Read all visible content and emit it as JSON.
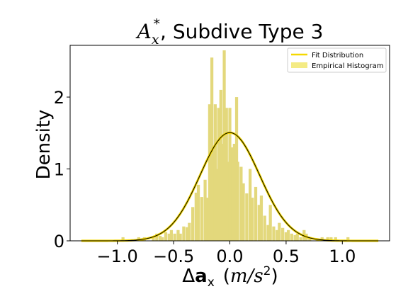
{
  "chart_data": {
    "type": "bar",
    "title_main": "A",
    "title_sub": "x",
    "title_sup": "*",
    "title_rest": ", Subdive Type 3",
    "ylabel": "Density",
    "xlabel_delta": "Δ",
    "xlabel_a": "a",
    "xlabel_sub": "x",
    "xlabel_units_open": "(",
    "xlabel_units": "m/s",
    "xlabel_units_sup": "2",
    "xlabel_units_close": ")",
    "xlim": [
      -1.42,
      1.42
    ],
    "ylim": [
      0,
      2.72
    ],
    "xticks": [
      -1.0,
      -0.5,
      0.0,
      0.5,
      1.0
    ],
    "xtick_labels": [
      "−1.0",
      "−0.5",
      "0.0",
      "0.5",
      "1.0"
    ],
    "yticks": [
      0,
      1,
      2
    ],
    "ytick_labels": [
      "0",
      "1",
      "2"
    ],
    "legend_position": "top-right",
    "legend": [
      {
        "name": "Fit Distribution",
        "kind": "line",
        "color": "#f5d800"
      },
      {
        "name": "Empirical Histogram",
        "kind": "patch",
        "color": "#f4eb84"
      }
    ],
    "hist": {
      "bin_width": 0.0267,
      "color": "#e3d87c",
      "bins": [
        [
          -0.95,
          0.05
        ],
        [
          -0.81,
          0.05
        ],
        [
          -0.76,
          0.05
        ],
        [
          -0.68,
          0.05
        ],
        [
          -0.65,
          0.1
        ],
        [
          -0.62,
          0.07
        ],
        [
          -0.6,
          0.05
        ],
        [
          -0.57,
          0.12
        ],
        [
          -0.54,
          0.1
        ],
        [
          -0.52,
          0.15
        ],
        [
          -0.49,
          0.1
        ],
        [
          -0.46,
          0.15
        ],
        [
          -0.44,
          0.1
        ],
        [
          -0.41,
          0.2
        ],
        [
          -0.38,
          0.19
        ],
        [
          -0.36,
          0.25
        ],
        [
          -0.33,
          0.47
        ],
        [
          -0.3,
          0.67
        ],
        [
          -0.28,
          0.78
        ],
        [
          -0.25,
          0.61
        ],
        [
          -0.22,
          0.85
        ],
        [
          -0.2,
          0.6
        ],
        [
          -0.17,
          1.0
        ],
        [
          -0.14,
          1.26
        ],
        [
          -0.12,
          1.0
        ],
        [
          -0.09,
          1.1
        ],
        [
          -0.06,
          1.35
        ],
        [
          -0.04,
          1.1
        ],
        [
          -0.01,
          1.1
        ],
        [
          0.02,
          1.3
        ],
        [
          0.04,
          1.35
        ],
        [
          0.07,
          1.1
        ],
        [
          0.1,
          1.03
        ],
        [
          0.12,
          0.8
        ],
        [
          0.15,
          0.66
        ],
        [
          0.18,
          1.0
        ],
        [
          0.2,
          0.6
        ],
        [
          0.23,
          0.75
        ],
        [
          0.26,
          0.5
        ],
        [
          0.28,
          0.63
        ],
        [
          0.31,
          0.35
        ],
        [
          0.34,
          0.22
        ],
        [
          0.36,
          0.5
        ],
        [
          0.39,
          0.2
        ],
        [
          0.42,
          0.15
        ],
        [
          0.44,
          0.25
        ],
        [
          0.47,
          0.18
        ],
        [
          0.5,
          0.12
        ],
        [
          0.52,
          0.15
        ],
        [
          0.55,
          0.1
        ],
        [
          0.58,
          0.08
        ],
        [
          0.6,
          0.1
        ],
        [
          0.63,
          0.05
        ],
        [
          0.66,
          0.15
        ],
        [
          0.68,
          0.1
        ],
        [
          0.71,
          0.05
        ],
        [
          0.82,
          0.05
        ],
        [
          0.87,
          0.05
        ],
        [
          0.9,
          0.05
        ],
        [
          0.94,
          0.05
        ],
        [
          1.05,
          0.05
        ]
      ],
      "peaks": [
        [
          -0.18,
          1.9
        ],
        [
          -0.16,
          2.55
        ],
        [
          -0.13,
          1.9
        ],
        [
          -0.1,
          1.85
        ],
        [
          -0.08,
          2.1
        ],
        [
          -0.05,
          2.65
        ],
        [
          -0.03,
          1.85
        ],
        [
          0.0,
          1.85
        ],
        [
          0.06,
          2.0
        ]
      ]
    },
    "fit": {
      "mean": 0.0,
      "std": 0.265,
      "x_min": -1.32,
      "x_max": 1.32,
      "color": "#f5d800"
    }
  }
}
